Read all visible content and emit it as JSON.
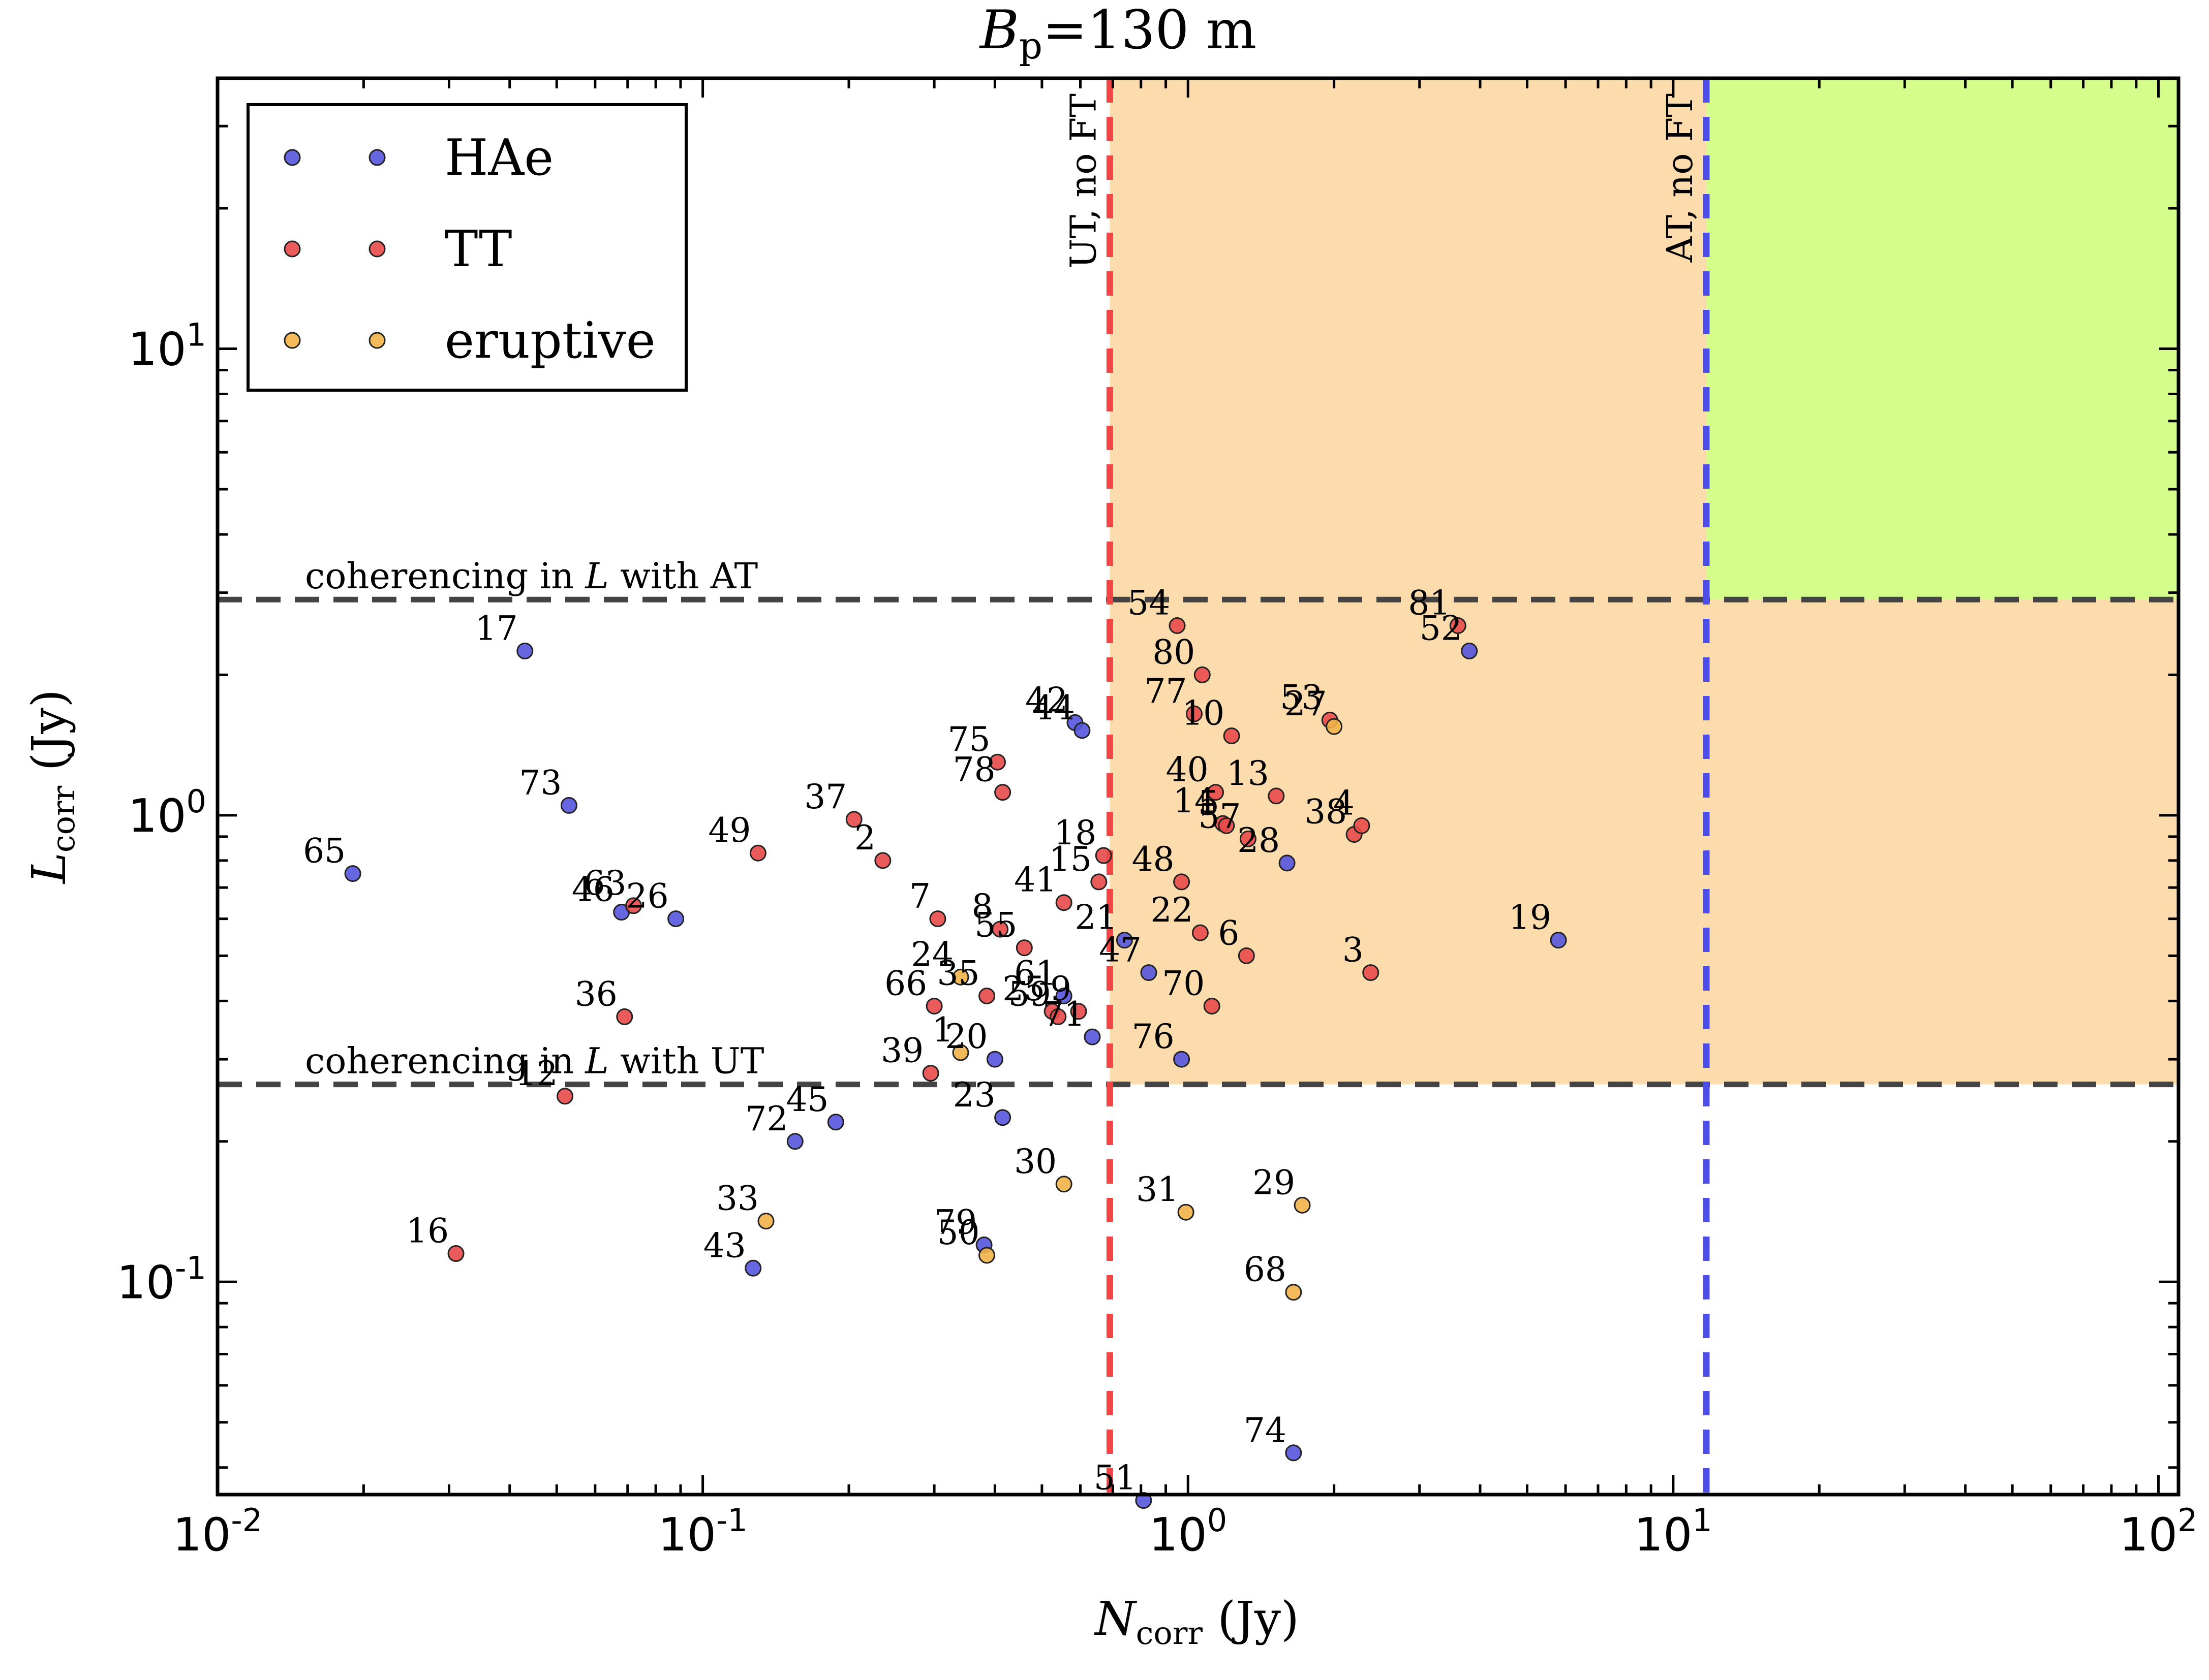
{
  "chart_data": {
    "type": "scatter",
    "title": "B_p = 130 m",
    "title_parts": {
      "symbol": "B",
      "subscript": "p",
      "rest": "=130 m"
    },
    "xlabel": "N_corr (Jy)",
    "xlabel_parts": {
      "symbol": "N",
      "subscript": "corr",
      "rest": " (Jy)"
    },
    "ylabel": "L_corr (Jy)",
    "ylabel_parts": {
      "symbol": "L",
      "subscript": "corr",
      "rest": " (Jy)"
    },
    "x_scale": "log",
    "y_scale": "log",
    "xlim": [
      0.01,
      110
    ],
    "ylim": [
      0.035,
      38
    ],
    "x_ticks": [
      {
        "value": 0.01,
        "base": "10",
        "exp": "-2"
      },
      {
        "value": 0.1,
        "base": "10",
        "exp": "-1"
      },
      {
        "value": 1,
        "base": "10",
        "exp": "0"
      },
      {
        "value": 10,
        "base": "10",
        "exp": "1"
      },
      {
        "value": 100,
        "base": "10",
        "exp": "2"
      }
    ],
    "y_ticks": [
      {
        "value": 0.1,
        "base": "10",
        "exp": "-1"
      },
      {
        "value": 1,
        "base": "10",
        "exp": "0"
      },
      {
        "value": 10,
        "base": "10",
        "exp": "1"
      }
    ],
    "legend_placement": "top-left",
    "series": [
      {
        "name": "HAe",
        "color": "#5555dd"
      },
      {
        "name": "TT",
        "color": "#e84a4a"
      },
      {
        "name": "eruptive",
        "color": "#f2b349"
      }
    ],
    "regions": [
      {
        "color": "#fcdcad",
        "x": [
          0.69,
          110
        ],
        "y": [
          0.265,
          38
        ]
      },
      {
        "color": "#d4fd8c",
        "x": [
          11.7,
          110
        ],
        "y": [
          2.9,
          38
        ]
      }
    ],
    "h_lines": [
      {
        "y": 2.9,
        "label": "coherencing in L with AT",
        "color": "#444444"
      },
      {
        "y": 0.265,
        "label": "coherencing in L with UT",
        "color": "#444444"
      }
    ],
    "v_lines": [
      {
        "x": 0.69,
        "label": "UT, no FT",
        "color": "#f24545"
      },
      {
        "x": 11.7,
        "label": "AT, no FT",
        "color": "#4d4de8"
      }
    ],
    "points": [
      {
        "id": "17",
        "series": "HAe",
        "x": 0.043,
        "y": 2.25
      },
      {
        "id": "73",
        "series": "HAe",
        "x": 0.053,
        "y": 1.05
      },
      {
        "id": "65",
        "series": "HAe",
        "x": 0.019,
        "y": 0.75
      },
      {
        "id": "46",
        "series": "HAe",
        "x": 0.068,
        "y": 0.62
      },
      {
        "id": "26",
        "series": "HAe",
        "x": 0.088,
        "y": 0.6
      },
      {
        "id": "72",
        "series": "HAe",
        "x": 0.155,
        "y": 0.2
      },
      {
        "id": "45",
        "series": "HAe",
        "x": 0.188,
        "y": 0.22
      },
      {
        "id": "43",
        "series": "HAe",
        "x": 0.127,
        "y": 0.107
      },
      {
        "id": "79",
        "series": "HAe",
        "x": 0.38,
        "y": 0.12
      },
      {
        "id": "20",
        "series": "HAe",
        "x": 0.4,
        "y": 0.3
      },
      {
        "id": "23",
        "series": "HAe",
        "x": 0.415,
        "y": 0.225
      },
      {
        "id": "42",
        "series": "HAe",
        "x": 0.585,
        "y": 1.58
      },
      {
        "id": "44",
        "series": "HAe",
        "x": 0.605,
        "y": 1.52
      },
      {
        "id": "61",
        "series": "HAe",
        "x": 0.555,
        "y": 0.41
      },
      {
        "id": "71",
        "series": "HAe",
        "x": 0.635,
        "y": 0.335
      },
      {
        "id": "21",
        "series": "HAe",
        "x": 0.74,
        "y": 0.54
      },
      {
        "id": "47",
        "series": "HAe",
        "x": 0.83,
        "y": 0.46
      },
      {
        "id": "76",
        "series": "HAe",
        "x": 0.97,
        "y": 0.3
      },
      {
        "id": "28",
        "series": "HAe",
        "x": 1.6,
        "y": 0.79
      },
      {
        "id": "52",
        "series": "HAe",
        "x": 3.8,
        "y": 2.25
      },
      {
        "id": "19",
        "series": "HAe",
        "x": 5.8,
        "y": 0.54
      },
      {
        "id": "74",
        "series": "HAe",
        "x": 1.65,
        "y": 0.043
      },
      {
        "id": "51",
        "series": "HAe",
        "x": 0.81,
        "y": 0.034
      },
      {
        "id": "63",
        "series": "TT",
        "x": 0.072,
        "y": 0.64
      },
      {
        "id": "49",
        "series": "TT",
        "x": 0.13,
        "y": 0.83
      },
      {
        "id": "37",
        "series": "TT",
        "x": 0.205,
        "y": 0.98
      },
      {
        "id": "2",
        "series": "TT",
        "x": 0.235,
        "y": 0.8
      },
      {
        "id": "36",
        "series": "TT",
        "x": 0.069,
        "y": 0.37
      },
      {
        "id": "12",
        "series": "TT",
        "x": 0.052,
        "y": 0.25
      },
      {
        "id": "16",
        "series": "TT",
        "x": 0.031,
        "y": 0.115
      },
      {
        "id": "7",
        "series": "TT",
        "x": 0.305,
        "y": 0.6
      },
      {
        "id": "66",
        "series": "TT",
        "x": 0.3,
        "y": 0.39
      },
      {
        "id": "35",
        "series": "TT",
        "x": 0.385,
        "y": 0.41
      },
      {
        "id": "39",
        "series": "TT",
        "x": 0.295,
        "y": 0.28
      },
      {
        "id": "75",
        "series": "TT",
        "x": 0.405,
        "y": 1.3
      },
      {
        "id": "78",
        "series": "TT",
        "x": 0.415,
        "y": 1.12
      },
      {
        "id": "8",
        "series": "TT",
        "x": 0.41,
        "y": 0.57
      },
      {
        "id": "55",
        "series": "TT",
        "x": 0.46,
        "y": 0.52
      },
      {
        "id": "41",
        "series": "TT",
        "x": 0.555,
        "y": 0.65
      },
      {
        "id": "18",
        "series": "TT",
        "x": 0.67,
        "y": 0.82
      },
      {
        "id": "15",
        "series": "TT",
        "x": 0.655,
        "y": 0.72
      },
      {
        "id": "25",
        "series": "TT",
        "x": 0.525,
        "y": 0.38
      },
      {
        "id": "59",
        "series": "TT",
        "x": 0.54,
        "y": 0.37
      },
      {
        "id": "9",
        "series": "TT",
        "x": 0.595,
        "y": 0.38
      },
      {
        "id": "54",
        "series": "TT",
        "x": 0.95,
        "y": 2.55
      },
      {
        "id": "80",
        "series": "TT",
        "x": 1.07,
        "y": 2.0
      },
      {
        "id": "77",
        "series": "TT",
        "x": 1.03,
        "y": 1.65
      },
      {
        "id": "10",
        "series": "TT",
        "x": 1.23,
        "y": 1.48
      },
      {
        "id": "40",
        "series": "TT",
        "x": 1.14,
        "y": 1.12
      },
      {
        "id": "13",
        "series": "TT",
        "x": 1.52,
        "y": 1.1
      },
      {
        "id": "14",
        "series": "TT",
        "x": 1.18,
        "y": 0.96
      },
      {
        "id": "5",
        "series": "TT",
        "x": 1.2,
        "y": 0.95
      },
      {
        "id": "57",
        "series": "TT",
        "x": 1.33,
        "y": 0.89
      },
      {
        "id": "48",
        "series": "TT",
        "x": 0.97,
        "y": 0.72
      },
      {
        "id": "22",
        "series": "TT",
        "x": 1.06,
        "y": 0.56
      },
      {
        "id": "6",
        "series": "TT",
        "x": 1.32,
        "y": 0.5
      },
      {
        "id": "70",
        "series": "TT",
        "x": 1.12,
        "y": 0.39
      },
      {
        "id": "38",
        "series": "TT",
        "x": 2.2,
        "y": 0.91
      },
      {
        "id": "4",
        "series": "TT",
        "x": 2.28,
        "y": 0.95
      },
      {
        "id": "3",
        "series": "TT",
        "x": 2.38,
        "y": 0.46
      },
      {
        "id": "81",
        "series": "TT",
        "x": 3.6,
        "y": 2.55
      },
      {
        "id": "53",
        "series": "TT",
        "x": 1.96,
        "y": 1.6
      },
      {
        "id": "27",
        "series": "eruptive",
        "x": 2.0,
        "y": 1.55
      },
      {
        "id": "24",
        "series": "eruptive",
        "x": 0.34,
        "y": 0.45
      },
      {
        "id": "1",
        "series": "eruptive",
        "x": 0.34,
        "y": 0.31
      },
      {
        "id": "33",
        "series": "eruptive",
        "x": 0.135,
        "y": 0.135
      },
      {
        "id": "50",
        "series": "eruptive",
        "x": 0.385,
        "y": 0.114
      },
      {
        "id": "30",
        "series": "eruptive",
        "x": 0.555,
        "y": 0.162
      },
      {
        "id": "31",
        "series": "eruptive",
        "x": 0.99,
        "y": 0.141
      },
      {
        "id": "29",
        "series": "eruptive",
        "x": 1.72,
        "y": 0.146
      },
      {
        "id": "68",
        "series": "eruptive",
        "x": 1.65,
        "y": 0.095
      }
    ]
  }
}
